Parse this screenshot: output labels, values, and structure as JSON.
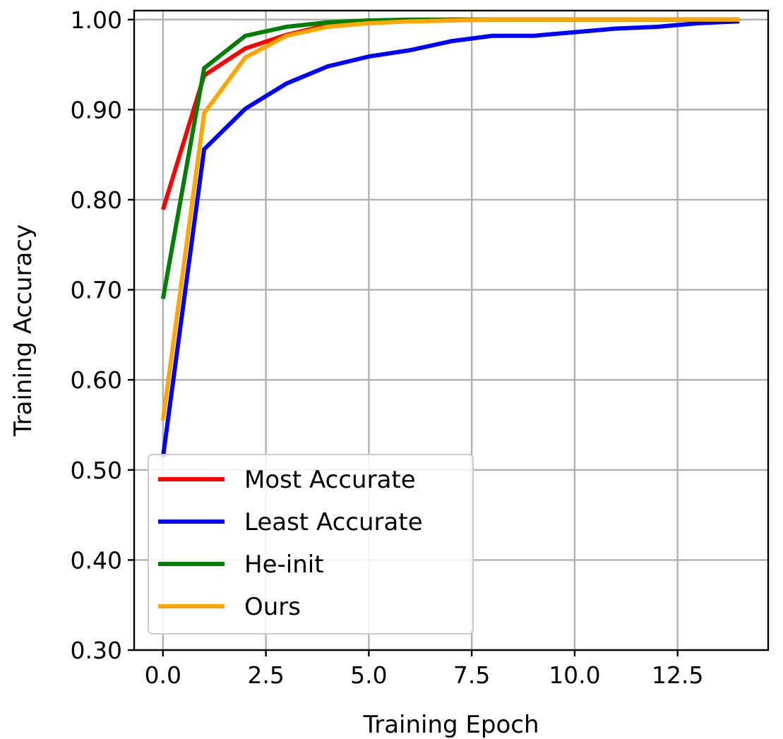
{
  "chart_data": {
    "type": "line",
    "xlabel": "Training Epoch",
    "ylabel": "Training Accuracy",
    "xlim": [
      -0.7,
      14.7
    ],
    "ylim": [
      0.3,
      1.01
    ],
    "xticks": [
      0.0,
      2.5,
      5.0,
      7.5,
      10.0,
      12.5
    ],
    "xtick_labels": [
      "0.0",
      "2.5",
      "5.0",
      "7.5",
      "10.0",
      "12.5"
    ],
    "yticks": [
      0.3,
      0.4,
      0.5,
      0.6,
      0.7,
      0.8,
      0.9,
      1.0
    ],
    "ytick_labels": [
      "0.30",
      "0.40",
      "0.50",
      "0.60",
      "0.70",
      "0.80",
      "0.90",
      "1.00"
    ],
    "grid": true,
    "legend_position": "lower-left",
    "x": [
      0,
      1,
      2,
      3,
      4,
      5,
      6,
      7,
      8,
      9,
      10,
      11,
      12,
      13,
      14
    ],
    "series": [
      {
        "name": "Most Accurate",
        "color": "#ff0000",
        "values": [
          0.789,
          0.938,
          0.968,
          0.983,
          0.994,
          0.997,
          0.999,
          1.0,
          1.0,
          1.0,
          1.0,
          1.0,
          1.0,
          1.0,
          1.0
        ]
      },
      {
        "name": "Least Accurate",
        "color": "#0000ff",
        "values": [
          0.514,
          0.856,
          0.901,
          0.929,
          0.948,
          0.959,
          0.966,
          0.976,
          0.982,
          0.982,
          0.986,
          0.99,
          0.992,
          0.996,
          0.998
        ]
      },
      {
        "name": "He-init",
        "color": "#008000",
        "values": [
          0.69,
          0.946,
          0.982,
          0.992,
          0.997,
          0.999,
          1.0,
          1.0,
          1.0,
          1.0,
          1.0,
          1.0,
          1.0,
          1.0,
          1.0
        ]
      },
      {
        "name": "Ours",
        "color": "#ffa500",
        "values": [
          0.555,
          0.896,
          0.958,
          0.982,
          0.992,
          0.996,
          0.998,
          0.999,
          1.0,
          1.0,
          1.0,
          1.0,
          1.0,
          1.0,
          1.0
        ]
      }
    ]
  }
}
